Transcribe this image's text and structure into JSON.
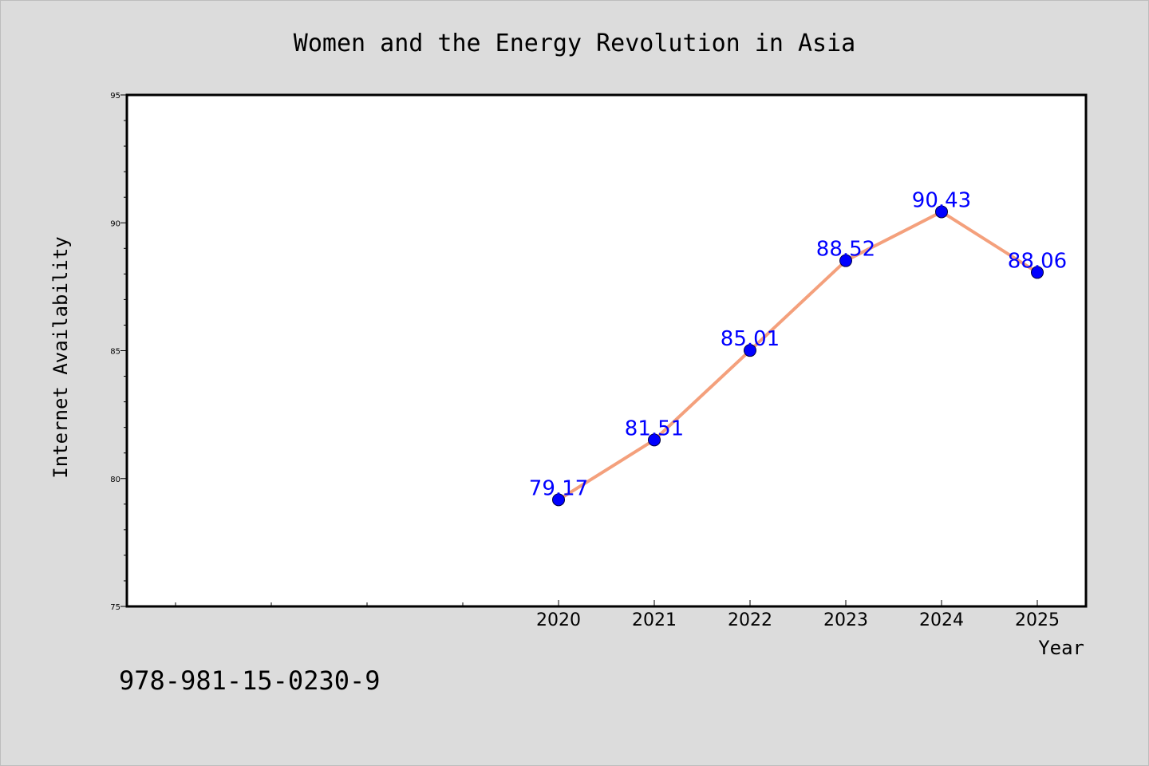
{
  "chart_data": {
    "type": "line",
    "title": "Women and the Energy Revolution in Asia",
    "xlabel": "Year",
    "ylabel": "Internet Availability",
    "x": [
      "2020",
      "2021",
      "2022",
      "2023",
      "2024",
      "2025"
    ],
    "series": [
      {
        "values": [
          79.17,
          81.51,
          85.01,
          88.52,
          90.43,
          88.06
        ],
        "data_labels": [
          "79.17",
          "81.51",
          "85.01",
          "88.52",
          "90.43",
          "88.06"
        ],
        "line_color": "#f4a07c",
        "marker_color": "#0000ff"
      }
    ],
    "ylim": [
      75,
      95
    ],
    "yticks": [
      "75",
      "80",
      "85",
      "90",
      "95"
    ],
    "grid": false,
    "legend": "none"
  },
  "footer": {
    "isbn": "978-981-15-0230-9"
  },
  "colors": {
    "background": "#dcdcdc",
    "plot_background": "#ffffff",
    "label_color": "#0000ff"
  }
}
